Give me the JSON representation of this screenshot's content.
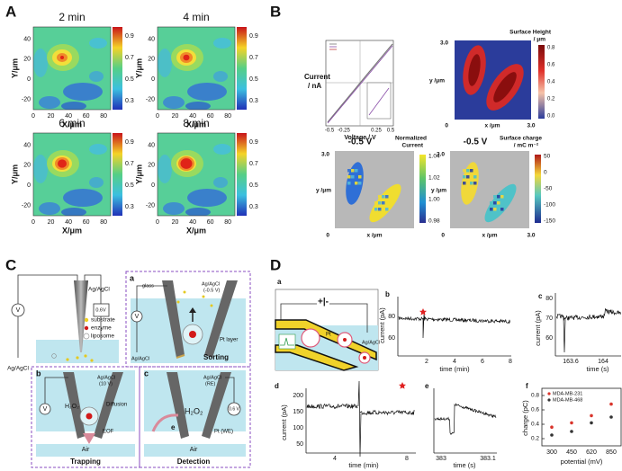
{
  "panel_a": {
    "label": "A",
    "maps": [
      "2 min",
      "4 min",
      "6 min",
      "8 min"
    ],
    "x_ticks": [
      "0",
      "20",
      "40",
      "60",
      "80"
    ],
    "y_ticks": [
      "40",
      "20",
      "0",
      "-20"
    ],
    "colorbar_ticks": [
      "0.9",
      "0.7",
      "0.5",
      "0.3"
    ],
    "x_label": "X/μm",
    "y_label": "Y/μm"
  },
  "panel_b": {
    "label": "B",
    "iv": {
      "y_label_1": "Current",
      "y_label_2": "/ nA",
      "x_label": "Voltage / V",
      "x_ticks": [
        "-0.5",
        "-0.25",
        "0.25",
        "0.5"
      ]
    },
    "height_map": {
      "title_1": "Surface Height",
      "title_2": "/ μm",
      "colorbar_ticks": [
        "0.8",
        "0.6",
        "0.4",
        "0.2",
        "0.0"
      ],
      "y_label": "y /μm",
      "x_label": "x /μm",
      "y_max": "3.0",
      "origin": "0",
      "x_max": "3.0"
    },
    "current_map": {
      "potential": "-0.5 V",
      "title_1": "Normalized",
      "title_2": "Current",
      "colorbar_ticks": [
        "1.04",
        "1.02",
        "1.00",
        "0.98"
      ],
      "y_label": "y /μm",
      "x_label": "x /μm",
      "y_max": "3.0",
      "origin": "0"
    },
    "charge_map": {
      "potential": "-0.5 V",
      "title_1": "Surface charge",
      "title_2": "/ mC m⁻²",
      "colorbar_ticks": [
        "50",
        "0",
        "-50",
        "-100",
        "-150"
      ],
      "y_label": "y /μm",
      "x_label": "x /μm",
      "y_max": "3.0",
      "origin": "0",
      "x_max": "3.0"
    }
  },
  "panel_c": {
    "label": "C",
    "overview": {
      "electrode_top": "Ag/AgCl",
      "meter": "V",
      "bias": "0.6V",
      "electrode_bottom": "Ag/AgCl",
      "legend": [
        "substrate",
        "enzyme",
        "liposome"
      ]
    },
    "a": {
      "label": "a",
      "glass": "glass",
      "electrode": "Ag/AgCl",
      "electrode_bias": "(-0.5 V)",
      "meter": "V",
      "electrode_bottom": "Ag/AgCl",
      "pt": "Pt layer",
      "caption": "Sorting"
    },
    "b": {
      "label": "b",
      "electrode": "Ag/AgCl",
      "electrode_bias": "(10 V)",
      "meter": "V",
      "diffusion": "Diffusion",
      "species": "H₂O₂",
      "eof": "EOF",
      "air": "Air",
      "caption": "Trapping"
    },
    "c": {
      "label": "c",
      "electrode": "Ag/AgCl",
      "electrode_role": "(RE)",
      "species": "H₂O₂",
      "electron": "e",
      "working": "Pt (WE)",
      "bias": "0.6 V",
      "air": "Air",
      "caption": "Detection"
    }
  },
  "panel_d": {
    "label": "D",
    "a": {
      "label": "a",
      "battery": "+|-",
      "electrode": "Ag/AgCl",
      "pt": "Pt"
    },
    "b": {
      "label": "b",
      "y_label": "current (pA)",
      "y_ticks": [
        "80",
        "60"
      ],
      "x_ticks": [
        "2",
        "4",
        "6",
        "8"
      ],
      "x_label": "time (min)"
    },
    "c": {
      "label": "c",
      "y_label": "current (pA)",
      "y_ticks": [
        "80",
        "70",
        "60"
      ],
      "x_ticks": [
        "163.6",
        "164"
      ],
      "x_label": "time (s)"
    },
    "d": {
      "label": "d",
      "y_label": "current (pA)",
      "y_ticks": [
        "200",
        "150",
        "100",
        "50"
      ],
      "x_ticks": [
        "4",
        "8"
      ],
      "x_label": "time (min)"
    },
    "e": {
      "label": "e",
      "x_ticks": [
        "383",
        "383.1"
      ],
      "x_label": "time (s)"
    },
    "f": {
      "label": "f",
      "y_label": "charge (pC)",
      "x_label": "potential (mV)",
      "categories": [
        "300",
        "450",
        "620",
        "850"
      ],
      "ylim": [
        0.1,
        0.9
      ],
      "yticks": [
        0.2,
        0.4,
        0.6,
        0.8
      ],
      "series": [
        {
          "name": "MDA-MB-231",
          "color": "#d9342b",
          "values": [
            0.36,
            0.42,
            0.52,
            0.68
          ]
        },
        {
          "name": "MDA-MB-468",
          "color": "#333333",
          "values": [
            0.25,
            0.3,
            0.42,
            0.5
          ]
        }
      ]
    }
  }
}
